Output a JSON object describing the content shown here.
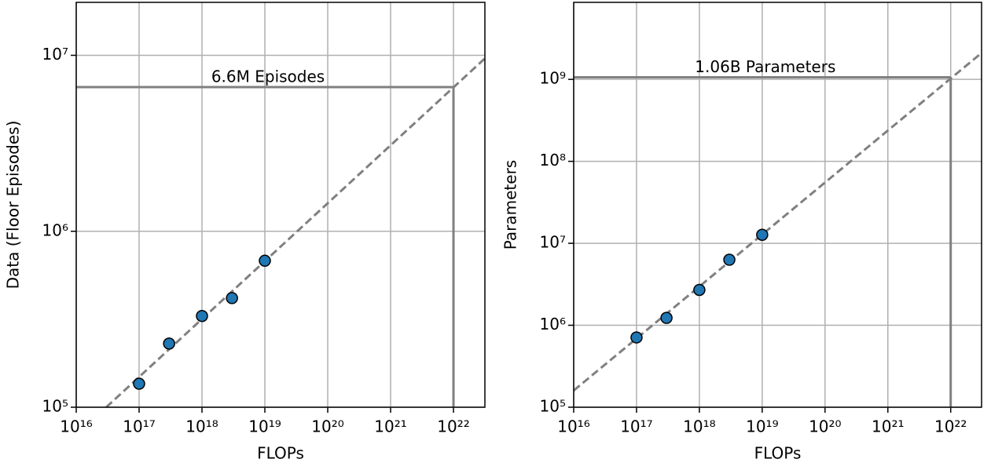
{
  "chart_data": [
    {
      "type": "scatter",
      "x_label": "FLOPs",
      "y_label": "Data (Floor Episodes)",
      "log_x": true,
      "log_y": true,
      "grid": true,
      "xlim": [
        1e+16,
        3.16e+22
      ],
      "ylim": [
        100000.0,
        20000000.0
      ],
      "xticks": [
        {
          "value": 1e+16,
          "label": "10¹⁶"
        },
        {
          "value": 1e+17,
          "label": "10¹⁷"
        },
        {
          "value": 1e+18,
          "label": "10¹⁸"
        },
        {
          "value": 1e+19,
          "label": "10¹⁹"
        },
        {
          "value": 1e+20,
          "label": "10²⁰"
        },
        {
          "value": 1e+21,
          "label": "10²¹"
        },
        {
          "value": 1e+22,
          "label": "10²²"
        }
      ],
      "yticks": [
        {
          "value": 100000.0,
          "label": "10⁵"
        },
        {
          "value": 1000000.0,
          "label": "10⁶"
        },
        {
          "value": 10000000.0,
          "label": "10⁷"
        }
      ],
      "x": [
        1e+17,
        3e+17,
        1e+18,
        3e+18,
        1e+19
      ],
      "values": [
        136000,
        230000,
        330000,
        417000,
        680000
      ],
      "color": "#1f77b4",
      "fit_line": {
        "x": [
          3e+16,
          3.16e+22
        ],
        "values": [
          100000,
          9600000
        ],
        "color": "#808080"
      },
      "annotation": {
        "text": "6.6M Episodes",
        "x": 1e+22,
        "y": 6600000,
        "color": "#808080"
      }
    },
    {
      "type": "scatter",
      "x_label": "FLOPs",
      "y_label": "Parameters",
      "log_x": true,
      "log_y": true,
      "grid": true,
      "xlim": [
        1e+16,
        3.1e+22
      ],
      "ylim": [
        100000.0,
        8700000000.0
      ],
      "xticks": [
        {
          "value": 1e+16,
          "label": "10¹⁶"
        },
        {
          "value": 1e+17,
          "label": "10¹⁷"
        },
        {
          "value": 1e+18,
          "label": "10¹⁸"
        },
        {
          "value": 1e+19,
          "label": "10¹⁹"
        },
        {
          "value": 1e+20,
          "label": "10²⁰"
        },
        {
          "value": 1e+21,
          "label": "10²¹"
        },
        {
          "value": 1e+22,
          "label": "10²²"
        }
      ],
      "yticks": [
        {
          "value": 100000.0,
          "label": "10⁵"
        },
        {
          "value": 1000000.0,
          "label": "10⁶"
        },
        {
          "value": 10000000.0,
          "label": "10⁷"
        },
        {
          "value": 100000000.0,
          "label": "10⁸"
        },
        {
          "value": 1000000000.0,
          "label": "10⁹"
        }
      ],
      "x": [
        1e+17,
        3e+17,
        1e+18,
        3e+18,
        1e+19
      ],
      "values": [
        710000,
        1230000,
        2700000,
        6300000,
        12700000
      ],
      "color": "#1f77b4",
      "fit_line": {
        "x": [
          1e+16,
          3.1e+22
        ],
        "values": [
          160000,
          2100000000
        ],
        "color": "#808080"
      },
      "annotation": {
        "text": "1.06B Parameters",
        "x": 1e+22,
        "y": 1060000000,
        "color": "#808080"
      }
    }
  ]
}
